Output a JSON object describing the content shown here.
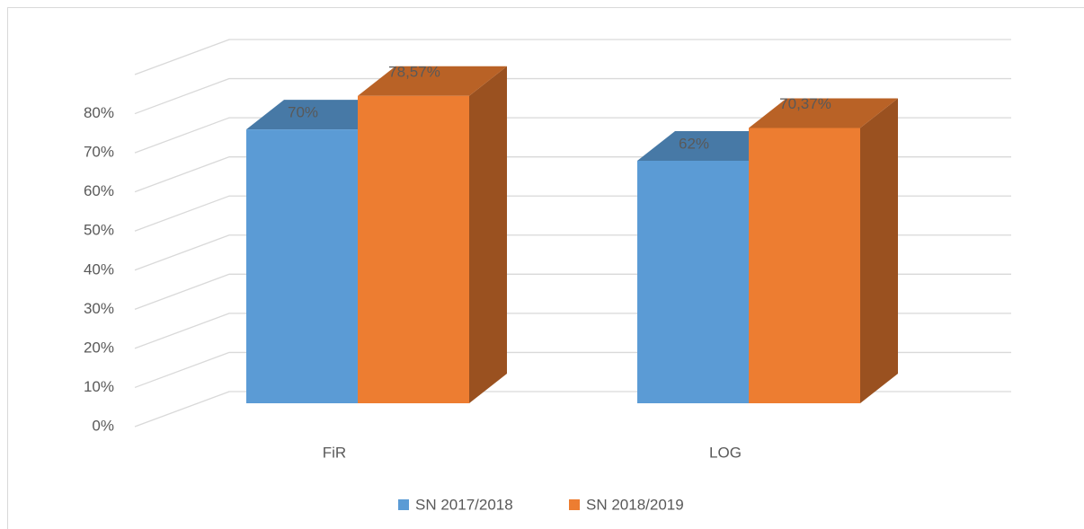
{
  "chart_data": {
    "type": "bar3d",
    "categories": [
      "FiR",
      "LOG"
    ],
    "series": [
      {
        "name": "SN 2017/2018",
        "color": "#5b9bd5",
        "values": [
          70,
          62
        ],
        "value_labels": [
          "70%",
          "62%"
        ]
      },
      {
        "name": "SN 2018/2019",
        "color": "#ed7d31",
        "values": [
          78.57,
          70.37
        ],
        "value_labels": [
          "78,57%",
          "70,37%"
        ]
      }
    ],
    "ylim": [
      0,
      90
    ],
    "yticks": [
      {
        "value": 0,
        "label": "0%"
      },
      {
        "value": 10,
        "label": "10%"
      },
      {
        "value": 20,
        "label": "20%"
      },
      {
        "value": 30,
        "label": "30%"
      },
      {
        "value": 40,
        "label": "40%"
      },
      {
        "value": 50,
        "label": "50%"
      },
      {
        "value": 60,
        "label": "60%"
      },
      {
        "value": 70,
        "label": "70%"
      },
      {
        "value": 80,
        "label": "80%"
      }
    ],
    "grid": true,
    "legend": "bottom"
  }
}
